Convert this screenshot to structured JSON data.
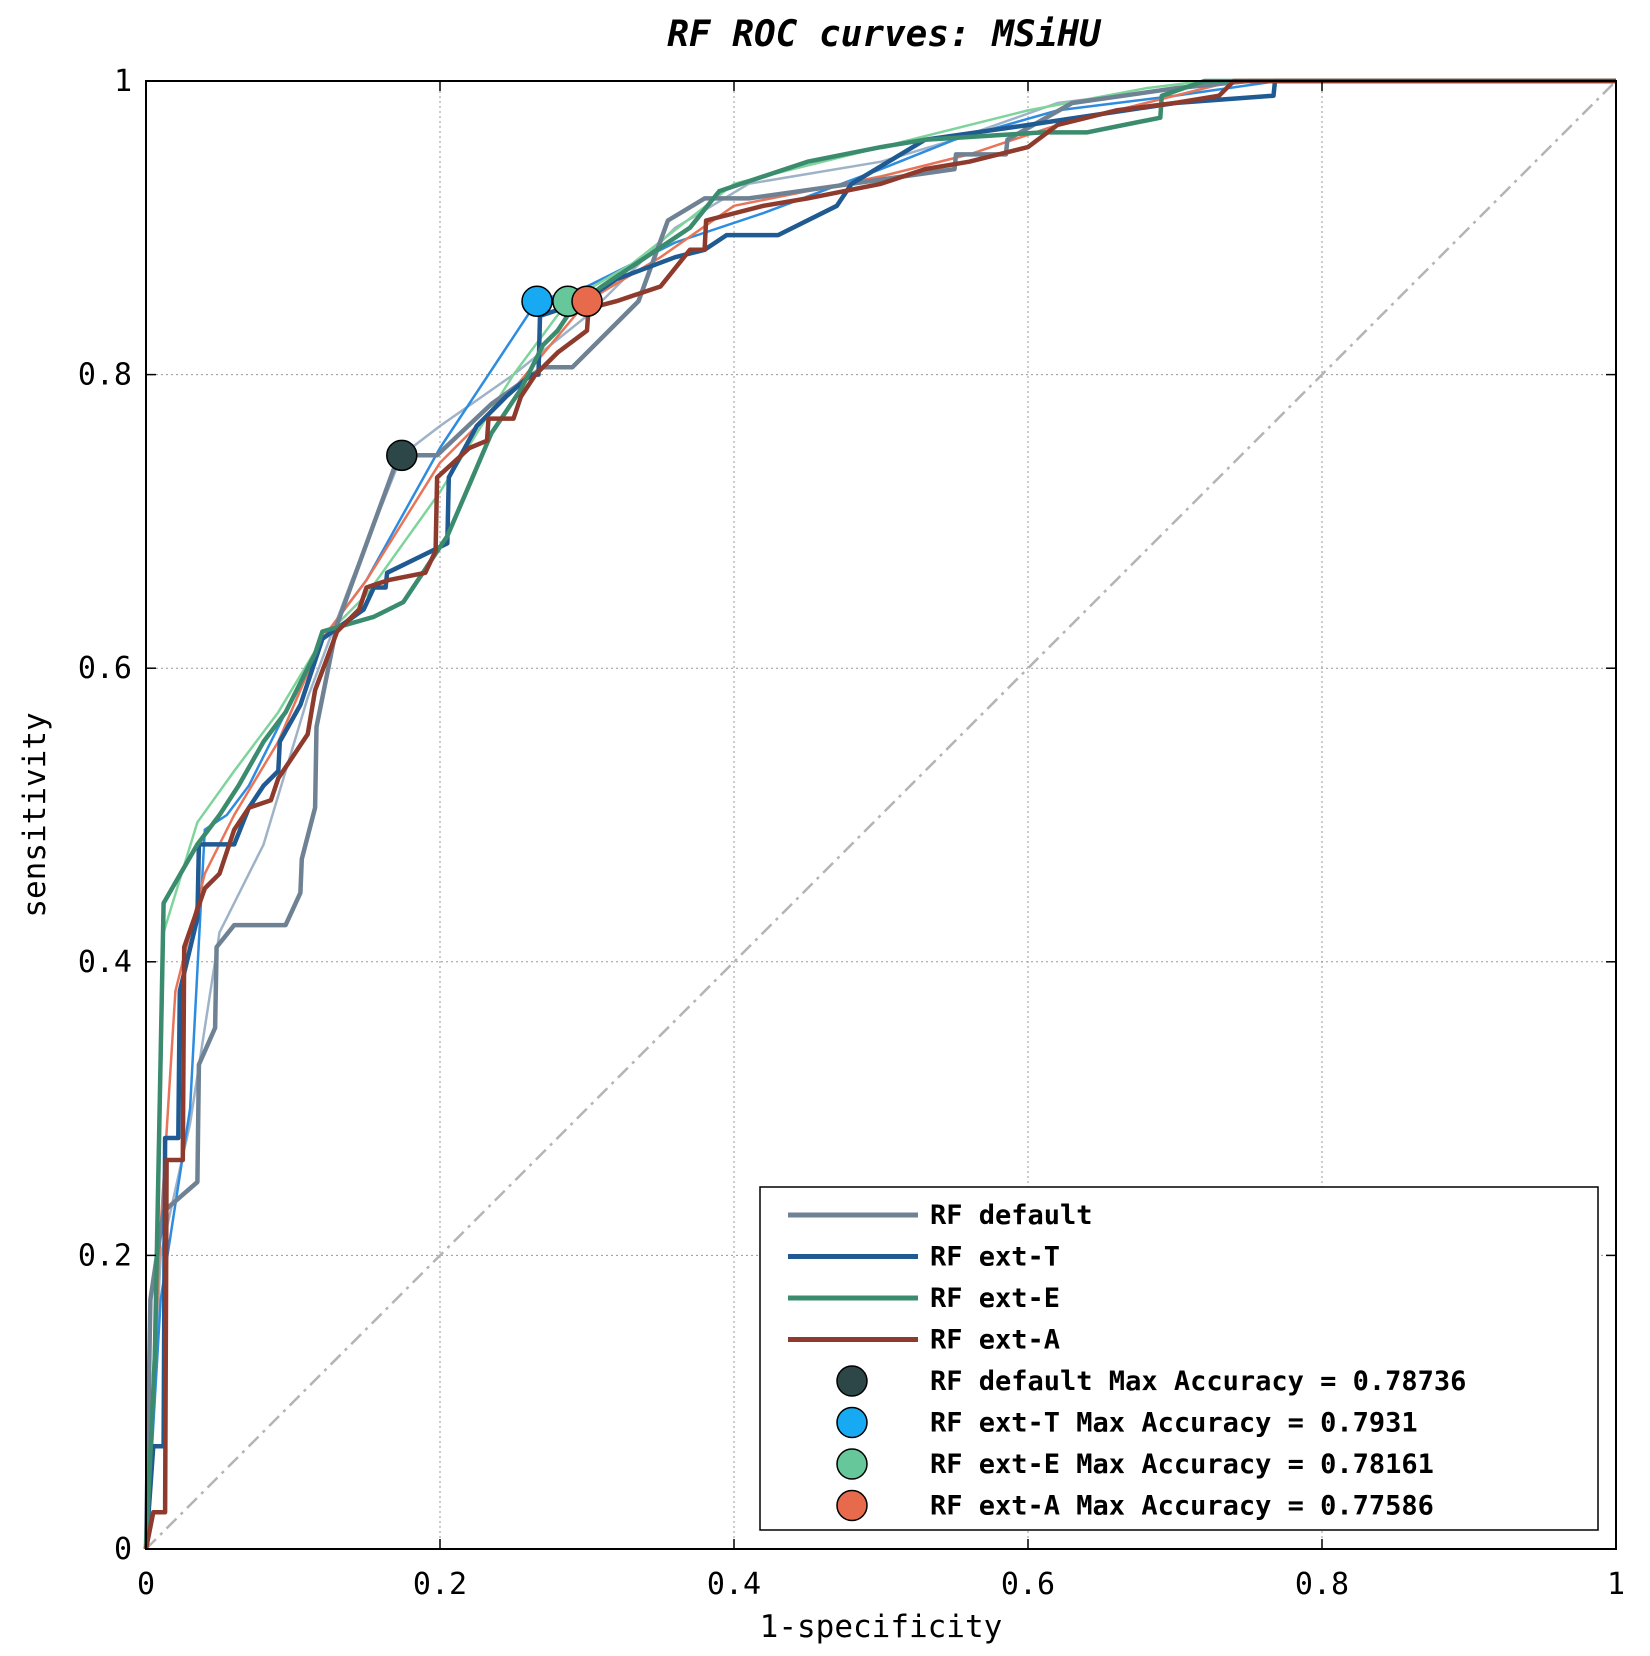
{
  "chart_data": {
    "type": "line",
    "title": "RF ROC curves: MSiHU",
    "xlabel": "1-specificity",
    "ylabel": "sensitivity",
    "xlim": [
      0,
      1
    ],
    "ylim": [
      0,
      1
    ],
    "xticks": [
      "0",
      "0.2",
      "0.4",
      "0.6",
      "0.8",
      "1"
    ],
    "yticks": [
      "0",
      "0.2",
      "0.4",
      "0.6",
      "0.8",
      "1"
    ],
    "grid": true,
    "legend_position": "bottom-right",
    "diagonal_reference": {
      "color": "#b4b4b4",
      "style": "dash-dot",
      "points": [
        [
          0,
          0
        ],
        [
          1,
          1
        ]
      ]
    },
    "series": [
      {
        "name": "RF default",
        "color": "#6f8294",
        "values": [
          [
            0,
            0
          ],
          [
            0.003,
            0.17
          ],
          [
            0.012,
            0.23
          ],
          [
            0.035,
            0.25
          ],
          [
            0.036,
            0.33
          ],
          [
            0.047,
            0.355
          ],
          [
            0.048,
            0.41
          ],
          [
            0.06,
            0.425
          ],
          [
            0.095,
            0.425
          ],
          [
            0.105,
            0.447
          ],
          [
            0.106,
            0.47
          ],
          [
            0.115,
            0.505
          ],
          [
            0.116,
            0.56
          ],
          [
            0.13,
            0.63
          ],
          [
            0.172,
            0.745
          ],
          [
            0.198,
            0.745
          ],
          [
            0.235,
            0.78
          ],
          [
            0.27,
            0.805
          ],
          [
            0.29,
            0.805
          ],
          [
            0.335,
            0.85
          ],
          [
            0.355,
            0.905
          ],
          [
            0.38,
            0.92
          ],
          [
            0.41,
            0.92
          ],
          [
            0.48,
            0.93
          ],
          [
            0.55,
            0.94
          ],
          [
            0.551,
            0.95
          ],
          [
            0.585,
            0.95
          ],
          [
            0.586,
            0.96
          ],
          [
            0.63,
            0.985
          ],
          [
            0.7,
            0.995
          ],
          [
            0.75,
            1
          ],
          [
            1,
            1
          ]
        ]
      },
      {
        "name": "RF ext-T",
        "color": "#1f5a92",
        "values": [
          [
            0,
            0
          ],
          [
            0.005,
            0.07
          ],
          [
            0.012,
            0.07
          ],
          [
            0.013,
            0.28
          ],
          [
            0.022,
            0.28
          ],
          [
            0.023,
            0.38
          ],
          [
            0.035,
            0.43
          ],
          [
            0.036,
            0.48
          ],
          [
            0.06,
            0.48
          ],
          [
            0.07,
            0.505
          ],
          [
            0.08,
            0.52
          ],
          [
            0.09,
            0.53
          ],
          [
            0.091,
            0.55
          ],
          [
            0.105,
            0.575
          ],
          [
            0.12,
            0.62
          ],
          [
            0.148,
            0.64
          ],
          [
            0.155,
            0.655
          ],
          [
            0.163,
            0.655
          ],
          [
            0.164,
            0.665
          ],
          [
            0.205,
            0.685
          ],
          [
            0.206,
            0.73
          ],
          [
            0.225,
            0.765
          ],
          [
            0.245,
            0.785
          ],
          [
            0.262,
            0.8
          ],
          [
            0.267,
            0.8
          ],
          [
            0.268,
            0.84
          ],
          [
            0.298,
            0.85
          ],
          [
            0.32,
            0.865
          ],
          [
            0.36,
            0.88
          ],
          [
            0.38,
            0.885
          ],
          [
            0.395,
            0.895
          ],
          [
            0.43,
            0.895
          ],
          [
            0.47,
            0.915
          ],
          [
            0.48,
            0.93
          ],
          [
            0.53,
            0.96
          ],
          [
            0.6,
            0.97
          ],
          [
            0.7,
            0.985
          ],
          [
            0.767,
            0.99
          ],
          [
            0.768,
            1
          ],
          [
            1,
            1
          ]
        ]
      },
      {
        "name": "RF ext-E",
        "color": "#3b8c6e",
        "values": [
          [
            0,
            0
          ],
          [
            0.006,
            0.13
          ],
          [
            0.012,
            0.44
          ],
          [
            0.035,
            0.48
          ],
          [
            0.05,
            0.5
          ],
          [
            0.063,
            0.52
          ],
          [
            0.08,
            0.55
          ],
          [
            0.095,
            0.57
          ],
          [
            0.115,
            0.61
          ],
          [
            0.12,
            0.625
          ],
          [
            0.155,
            0.635
          ],
          [
            0.175,
            0.645
          ],
          [
            0.205,
            0.69
          ],
          [
            0.22,
            0.725
          ],
          [
            0.235,
            0.76
          ],
          [
            0.255,
            0.79
          ],
          [
            0.27,
            0.82
          ],
          [
            0.28,
            0.83
          ],
          [
            0.29,
            0.845
          ],
          [
            0.31,
            0.86
          ],
          [
            0.34,
            0.88
          ],
          [
            0.37,
            0.9
          ],
          [
            0.39,
            0.925
          ],
          [
            0.45,
            0.945
          ],
          [
            0.5,
            0.955
          ],
          [
            0.53,
            0.96
          ],
          [
            0.61,
            0.965
          ],
          [
            0.64,
            0.965
          ],
          [
            0.69,
            0.975
          ],
          [
            0.691,
            0.99
          ],
          [
            0.72,
            1
          ],
          [
            1,
            1
          ]
        ]
      },
      {
        "name": "RF ext-A",
        "color": "#8e3b2d",
        "values": [
          [
            0,
            0
          ],
          [
            0.005,
            0.025
          ],
          [
            0.013,
            0.025
          ],
          [
            0.014,
            0.265
          ],
          [
            0.025,
            0.265
          ],
          [
            0.026,
            0.41
          ],
          [
            0.04,
            0.45
          ],
          [
            0.05,
            0.46
          ],
          [
            0.06,
            0.49
          ],
          [
            0.07,
            0.505
          ],
          [
            0.085,
            0.51
          ],
          [
            0.09,
            0.525
          ],
          [
            0.11,
            0.555
          ],
          [
            0.115,
            0.585
          ],
          [
            0.13,
            0.625
          ],
          [
            0.145,
            0.64
          ],
          [
            0.15,
            0.655
          ],
          [
            0.165,
            0.66
          ],
          [
            0.19,
            0.665
          ],
          [
            0.197,
            0.68
          ],
          [
            0.198,
            0.73
          ],
          [
            0.22,
            0.75
          ],
          [
            0.232,
            0.755
          ],
          [
            0.233,
            0.77
          ],
          [
            0.25,
            0.77
          ],
          [
            0.255,
            0.785
          ],
          [
            0.265,
            0.8
          ],
          [
            0.28,
            0.815
          ],
          [
            0.3,
            0.83
          ],
          [
            0.301,
            0.845
          ],
          [
            0.32,
            0.85
          ],
          [
            0.35,
            0.86
          ],
          [
            0.37,
            0.885
          ],
          [
            0.38,
            0.885
          ],
          [
            0.381,
            0.905
          ],
          [
            0.42,
            0.915
          ],
          [
            0.45,
            0.92
          ],
          [
            0.5,
            0.93
          ],
          [
            0.53,
            0.94
          ],
          [
            0.56,
            0.945
          ],
          [
            0.6,
            0.955
          ],
          [
            0.62,
            0.97
          ],
          [
            0.66,
            0.98
          ],
          [
            0.7,
            0.985
          ],
          [
            0.73,
            0.99
          ],
          [
            0.74,
            1
          ],
          [
            1,
            1
          ]
        ]
      },
      {
        "name": "",
        "color": "#9fb3c8",
        "values": [
          [
            0,
            0
          ],
          [
            0.01,
            0.2
          ],
          [
            0.03,
            0.29
          ],
          [
            0.05,
            0.42
          ],
          [
            0.08,
            0.48
          ],
          [
            0.11,
            0.58
          ],
          [
            0.14,
            0.66
          ],
          [
            0.174,
            0.745
          ],
          [
            0.2,
            0.765
          ],
          [
            0.25,
            0.8
          ],
          [
            0.3,
            0.84
          ],
          [
            0.36,
            0.9
          ],
          [
            0.41,
            0.93
          ],
          [
            0.5,
            0.945
          ],
          [
            0.55,
            0.96
          ],
          [
            0.62,
            0.985
          ],
          [
            0.7,
            0.995
          ],
          [
            0.75,
            1
          ],
          [
            1,
            1
          ]
        ]
      },
      {
        "name": "",
        "color": "#2e8ce0",
        "values": [
          [
            0,
            0
          ],
          [
            0.01,
            0.17
          ],
          [
            0.03,
            0.3
          ],
          [
            0.04,
            0.49
          ],
          [
            0.055,
            0.5
          ],
          [
            0.07,
            0.52
          ],
          [
            0.09,
            0.56
          ],
          [
            0.12,
            0.62
          ],
          [
            0.15,
            0.66
          ],
          [
            0.2,
            0.75
          ],
          [
            0.266,
            0.85
          ],
          [
            0.3,
            0.86
          ],
          [
            0.36,
            0.89
          ],
          [
            0.42,
            0.91
          ],
          [
            0.5,
            0.94
          ],
          [
            0.55,
            0.96
          ],
          [
            0.62,
            0.98
          ],
          [
            0.7,
            0.99
          ],
          [
            0.77,
            1
          ],
          [
            1,
            1
          ]
        ]
      },
      {
        "name": "",
        "color": "#7fd49c",
        "values": [
          [
            0,
            0
          ],
          [
            0.008,
            0.2
          ],
          [
            0.012,
            0.42
          ],
          [
            0.035,
            0.495
          ],
          [
            0.06,
            0.53
          ],
          [
            0.09,
            0.57
          ],
          [
            0.12,
            0.62
          ],
          [
            0.15,
            0.65
          ],
          [
            0.2,
            0.72
          ],
          [
            0.25,
            0.8
          ],
          [
            0.287,
            0.85
          ],
          [
            0.33,
            0.875
          ],
          [
            0.4,
            0.93
          ],
          [
            0.5,
            0.955
          ],
          [
            0.6,
            0.98
          ],
          [
            0.68,
            0.995
          ],
          [
            0.72,
            1
          ],
          [
            1,
            1
          ]
        ]
      },
      {
        "name": "",
        "color": "#e87559",
        "values": [
          [
            0,
            0
          ],
          [
            0.01,
            0.22
          ],
          [
            0.02,
            0.38
          ],
          [
            0.04,
            0.46
          ],
          [
            0.06,
            0.5
          ],
          [
            0.09,
            0.55
          ],
          [
            0.12,
            0.62
          ],
          [
            0.15,
            0.66
          ],
          [
            0.2,
            0.74
          ],
          [
            0.25,
            0.79
          ],
          [
            0.3,
            0.85
          ],
          [
            0.35,
            0.88
          ],
          [
            0.4,
            0.915
          ],
          [
            0.5,
            0.935
          ],
          [
            0.56,
            0.95
          ],
          [
            0.62,
            0.97
          ],
          [
            0.7,
            0.99
          ],
          [
            0.74,
            1
          ],
          [
            1,
            1
          ]
        ]
      }
    ],
    "max_accuracy_points": [
      {
        "name": "RF default Max Accuracy = 0.78736",
        "color": "#2d4748",
        "x": 0.174,
        "y": 0.745
      },
      {
        "name": "RF ext-T Max Accuracy = 0.7931",
        "color": "#17aaf2",
        "x": 0.266,
        "y": 0.85
      },
      {
        "name": "RF ext-E Max Accuracy = 0.78161",
        "color": "#66c79a",
        "x": 0.287,
        "y": 0.85
      },
      {
        "name": "RF ext-A Max Accuracy = 0.77586",
        "color": "#e86a4c",
        "x": 0.3,
        "y": 0.85
      }
    ]
  }
}
